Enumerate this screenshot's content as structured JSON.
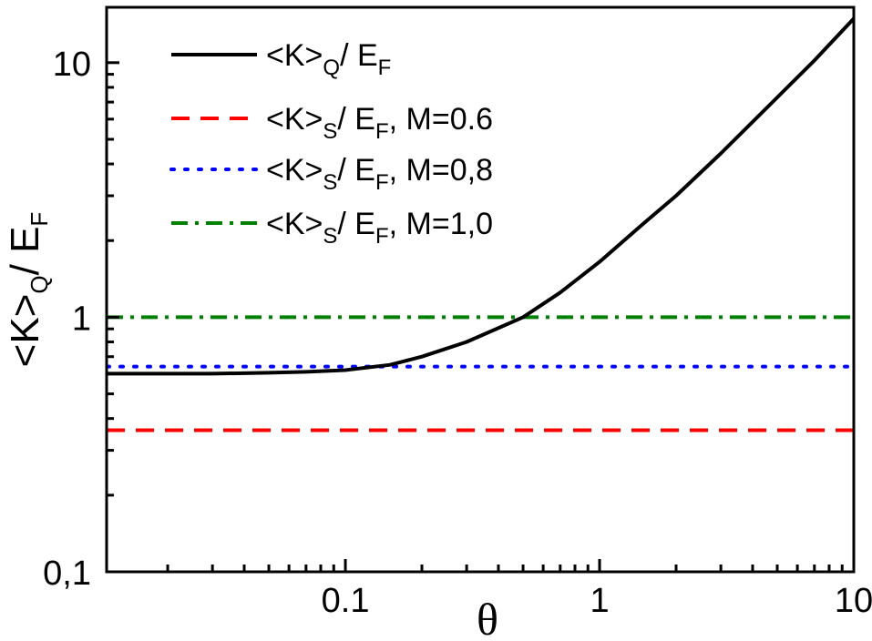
{
  "chart_data": {
    "type": "line",
    "x_scale": "log",
    "y_scale": "log",
    "xlim": [
      0.0115,
      10
    ],
    "ylim": [
      0.1,
      16.5
    ],
    "xlabel": "θ",
    "ylabel": {
      "main": "<K>",
      "sub": "Q",
      "rest": "/ E",
      "rest_sub": "F"
    },
    "x_ticks": [
      {
        "value": 0.1,
        "label": "0.1"
      },
      {
        "value": 1,
        "label": "1"
      },
      {
        "value": 10,
        "label": "10"
      }
    ],
    "y_ticks": [
      {
        "value": 0.1,
        "label": "0,1"
      },
      {
        "value": 1,
        "label": "1"
      },
      {
        "value": 10,
        "label": "10"
      }
    ],
    "grid": false,
    "legend_position": "top-left",
    "series": [
      {
        "name": "<K>Q/ EF",
        "legend": {
          "main": "<K>",
          "sub": "Q",
          "rest": "/ E",
          "rest_sub": "F",
          "suffix": ""
        },
        "color": "#000000",
        "style": "solid",
        "x": [
          0.0115,
          0.02,
          0.03,
          0.05,
          0.07,
          0.1,
          0.15,
          0.2,
          0.3,
          0.5,
          0.7,
          1,
          1.5,
          2,
          3,
          5,
          7,
          10
        ],
        "y": [
          0.6,
          0.6,
          0.6,
          0.605,
          0.61,
          0.62,
          0.65,
          0.7,
          0.8,
          1.0,
          1.25,
          1.65,
          2.35,
          3.0,
          4.4,
          7.3,
          10.2,
          14.9
        ]
      },
      {
        "name": "<K>S/ EF, M=0.6",
        "legend": {
          "main": "<K>",
          "sub": "S",
          "rest": "/ E",
          "rest_sub": "F",
          "suffix": ", M=0.6"
        },
        "color": "#ff0000",
        "style": "dashed",
        "x": [
          0.0115,
          10
        ],
        "y": [
          0.36,
          0.36
        ]
      },
      {
        "name": "<K>S/ EF, M=0,8",
        "legend": {
          "main": "<K>",
          "sub": "S",
          "rest": "/ E",
          "rest_sub": "F",
          "suffix": ", M=0,8"
        },
        "color": "#0000ff",
        "style": "dotted",
        "x": [
          0.0115,
          10
        ],
        "y": [
          0.64,
          0.64
        ]
      },
      {
        "name": "<K>S/ EF, M=1,0",
        "legend": {
          "main": "<K>",
          "sub": "S",
          "rest": "/ E",
          "rest_sub": "F",
          "suffix": ", M=1,0"
        },
        "color": "#008000",
        "style": "dashdot",
        "x": [
          0.0115,
          10
        ],
        "y": [
          1.0,
          1.0
        ]
      }
    ]
  }
}
